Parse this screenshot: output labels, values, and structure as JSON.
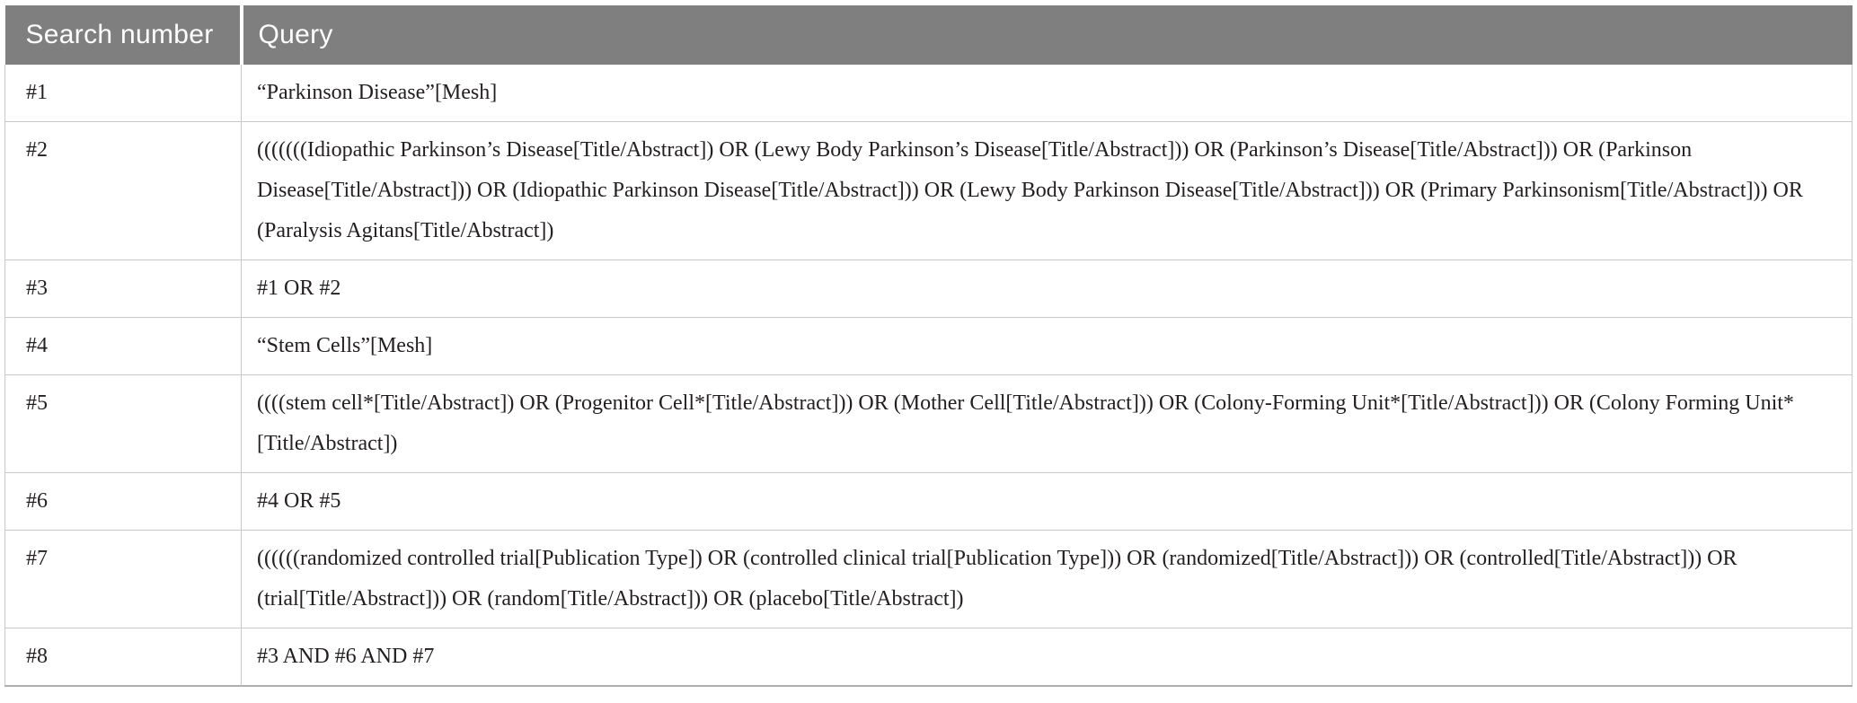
{
  "table": {
    "columns": [
      {
        "label": "Search number"
      },
      {
        "label": "Query"
      }
    ],
    "rows": [
      {
        "search_number": "#1",
        "query": "“Parkinson Disease”[Mesh]"
      },
      {
        "search_number": "#2",
        "query": "(((((((Idiopathic Parkinson’s Disease[Title/Abstract]) OR (Lewy Body Parkinson’s Disease[Title/Abstract])) OR (Parkinson’s Disease[Title/Abstract])) OR (Parkinson Disease[Title/Abstract])) OR (Idiopathic Parkinson Disease[Title/Abstract])) OR (Lewy Body Parkinson Disease[Title/Abstract])) OR (Primary Parkinsonism[Title/Abstract])) OR (Paralysis Agitans[Title/Abstract])"
      },
      {
        "search_number": "#3",
        "query": "#1 OR #2"
      },
      {
        "search_number": "#4",
        "query": "“Stem Cells”[Mesh]"
      },
      {
        "search_number": "#5",
        "query": "((((stem cell*[Title/Abstract]) OR (Progenitor Cell*[Title/Abstract])) OR (Mother Cell[Title/Abstract])) OR (Colony-Forming Unit*[Title/Abstract])) OR (Colony Forming Unit*[Title/Abstract])"
      },
      {
        "search_number": "#6",
        "query": "#4 OR #5"
      },
      {
        "search_number": "#7",
        "query": "((((((randomized controlled trial[Publication Type]) OR (controlled clinical trial[Publication Type])) OR (randomized[Title/Abstract])) OR (controlled[Title/Abstract])) OR (trial[Title/Abstract])) OR (random[Title/Abstract])) OR (placebo[Title/Abstract])"
      },
      {
        "search_number": "#8",
        "query": "#3 AND #6 AND #7"
      }
    ]
  },
  "colors": {
    "header_background": "#7f7f7f",
    "header_text": "#ffffff",
    "row_border": "#c8c8c8",
    "body_text": "#231f20"
  }
}
